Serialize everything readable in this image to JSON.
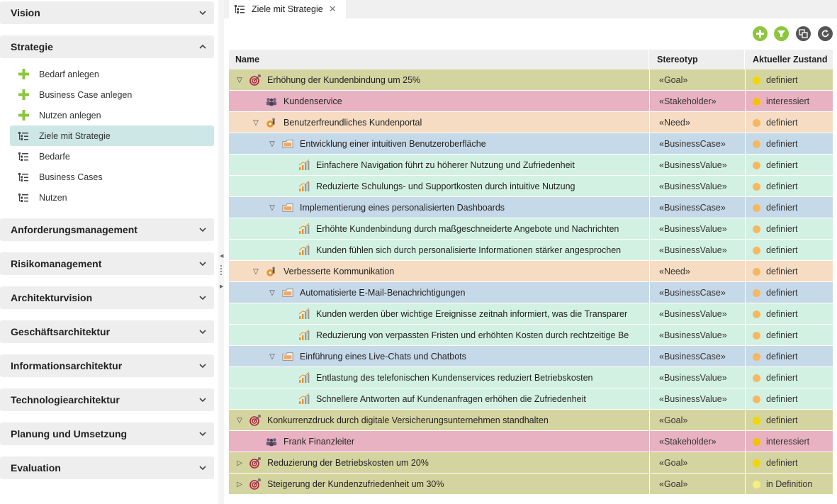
{
  "sidebar": {
    "sections": [
      {
        "label": "Vision"
      },
      {
        "label": "Strategie"
      },
      {
        "label": "Anforderungsmanagement"
      },
      {
        "label": "Risikomanagement"
      },
      {
        "label": "Architekturvision"
      },
      {
        "label": "Geschäftsarchitektur"
      },
      {
        "label": "Informationsarchitektur"
      },
      {
        "label": "Technologiearchitektur"
      },
      {
        "label": "Planung und Umsetzung"
      },
      {
        "label": "Evaluation"
      }
    ],
    "strategie_items": [
      {
        "label": "Bedarf anlegen",
        "icon": "plus-icon"
      },
      {
        "label": "Business Case anlegen",
        "icon": "plus-icon"
      },
      {
        "label": "Nutzen anlegen",
        "icon": "plus-icon"
      },
      {
        "label": "Ziele mit Strategie",
        "icon": "tree-list-icon",
        "selected": true
      },
      {
        "label": "Bedarfe",
        "icon": "tree-list-icon"
      },
      {
        "label": "Business Cases",
        "icon": "tree-list-icon"
      },
      {
        "label": "Nutzen",
        "icon": "tree-list-icon"
      }
    ]
  },
  "tab": {
    "label": "Ziele mit Strategie",
    "close": "✕"
  },
  "toolbar": [
    "add-icon",
    "filter-icon",
    "export-icon",
    "refresh-icon"
  ],
  "grid": {
    "columns": {
      "name": "Name",
      "stereotype": "Stereotyp",
      "state": "Aktueller Zustand"
    },
    "rows": [
      {
        "level": 0,
        "toggle": "▽",
        "type": "goal",
        "name": "Erhöhung der Kundenbindung um 25%",
        "stereotype": "«Goal»",
        "state": "definiert",
        "state_color": "#f2d600"
      },
      {
        "level": 1,
        "toggle": "",
        "type": "stakeholder",
        "name": "Kundenservice",
        "stereotype": "«Stakeholder»",
        "state": "interessiert",
        "state_color": "#f2c400"
      },
      {
        "level": 1,
        "toggle": "▽",
        "type": "need",
        "name": "Benutzerfreundliches Kundenportal",
        "stereotype": "«Need»",
        "state": "definiert",
        "state_color": "#f5b860"
      },
      {
        "level": 2,
        "toggle": "▽",
        "type": "businesscase",
        "name": "Entwicklung einer intuitiven Benutzeroberfläche",
        "stereotype": "«BusinessCase»",
        "state": "definiert",
        "state_color": "#f5b860"
      },
      {
        "level": 3,
        "toggle": "",
        "type": "businessvalue",
        "name": "Einfachere Navigation führt zu höherer Nutzung und Zufriedenheit",
        "stereotype": "«BusinessValue»",
        "state": "definiert",
        "state_color": "#f5b860"
      },
      {
        "level": 3,
        "toggle": "",
        "type": "businessvalue",
        "name": "Reduzierte Schulungs- und Supportkosten durch intuitive Nutzung",
        "stereotype": "«BusinessValue»",
        "state": "definiert",
        "state_color": "#f5b860"
      },
      {
        "level": 2,
        "toggle": "▽",
        "type": "businesscase",
        "name": "Implementierung eines personalisierten Dashboards",
        "stereotype": "«BusinessCase»",
        "state": "definiert",
        "state_color": "#f5b860"
      },
      {
        "level": 3,
        "toggle": "",
        "type": "businessvalue",
        "name": "Erhöhte Kundenbindung durch maßgeschneiderte Angebote und Nachrichten",
        "stereotype": "«BusinessValue»",
        "state": "definiert",
        "state_color": "#f5b860"
      },
      {
        "level": 3,
        "toggle": "",
        "type": "businessvalue",
        "name": "Kunden fühlen sich durch personalisierte Informationen stärker angesprochen",
        "stereotype": "«BusinessValue»",
        "state": "definiert",
        "state_color": "#f5b860"
      },
      {
        "level": 1,
        "toggle": "▽",
        "type": "need",
        "name": "Verbesserte Kommunikation",
        "stereotype": "«Need»",
        "state": "definiert",
        "state_color": "#f5b860"
      },
      {
        "level": 2,
        "toggle": "▽",
        "type": "businesscase",
        "name": "Automatisierte E-Mail-Benachrichtigungen",
        "stereotype": "«BusinessCase»",
        "state": "definiert",
        "state_color": "#f5b860"
      },
      {
        "level": 3,
        "toggle": "",
        "type": "businessvalue",
        "name": "Kunden werden über wichtige Ereignisse zeitnah informiert, was die Transparer",
        "stereotype": "«BusinessValue»",
        "state": "definiert",
        "state_color": "#f5b860"
      },
      {
        "level": 3,
        "toggle": "",
        "type": "businessvalue",
        "name": "Reduzierung von verpassten Fristen und erhöhten Kosten durch rechtzeitige Be",
        "stereotype": "«BusinessValue»",
        "state": "definiert",
        "state_color": "#f5b860"
      },
      {
        "level": 2,
        "toggle": "▽",
        "type": "businesscase",
        "name": "Einführung eines Live-Chats und Chatbots",
        "stereotype": "«BusinessCase»",
        "state": "definiert",
        "state_color": "#f5b860"
      },
      {
        "level": 3,
        "toggle": "",
        "type": "businessvalue",
        "name": "Entlastung des telefonischen Kundenservices reduziert Betriebskosten",
        "stereotype": "«BusinessValue»",
        "state": "definiert",
        "state_color": "#f5b860"
      },
      {
        "level": 3,
        "toggle": "",
        "type": "businessvalue",
        "name": "Schnellere Antworten auf Kundenanfragen erhöhen die Zufriedenheit",
        "stereotype": "«BusinessValue»",
        "state": "definiert",
        "state_color": "#f5b860"
      },
      {
        "level": 0,
        "toggle": "▽",
        "type": "goal",
        "name": "Konkurrenzdruck durch digitale Versicherungsunternehmen standhalten",
        "stereotype": "«Goal»",
        "state": "definiert",
        "state_color": "#f2d600"
      },
      {
        "level": 1,
        "toggle": "",
        "type": "stakeholder",
        "name": "Frank Finanzleiter",
        "stereotype": "«Stakeholder»",
        "state": "interessiert",
        "state_color": "#f2c400"
      },
      {
        "level": 0,
        "toggle": "▷",
        "type": "goal",
        "name": "Reduzierung der Betriebskosten um 20%",
        "stereotype": "«Goal»",
        "state": "definiert",
        "state_color": "#f2d600"
      },
      {
        "level": 0,
        "toggle": "▷",
        "type": "goal",
        "name": "Steigerung der Kundenzufriedenheit um 30%",
        "stereotype": "«Goal»",
        "state": "in Definition",
        "state_color": "#f7ee80"
      }
    ]
  },
  "colors": {
    "goal": "#d4d4a0",
    "stakeholder": "#e8b2c2",
    "need": "#f5dcc2",
    "businesscase": "#c6d9e8",
    "businessvalue": "#d3f1e3",
    "accent_green": "#8cc63f"
  }
}
